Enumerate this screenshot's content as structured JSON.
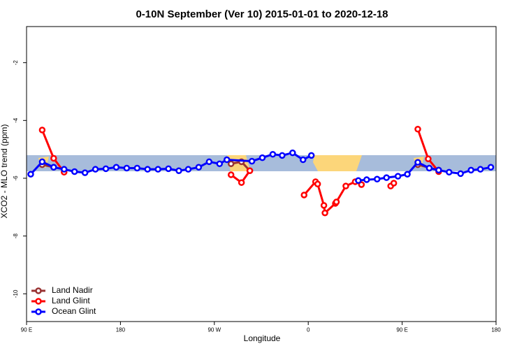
{
  "chart_data": {
    "type": "line",
    "title": "0-10N September (Ver 10)   2015-01-01 to 2020-12-18",
    "x_label": "Longitude",
    "y_label": "XCO2 - MLO trend (ppm)",
    "xlim": [
      90,
      540
    ],
    "xticks": [
      {
        "value": 90,
        "label": "90 E"
      },
      180,
      {
        "value": 270,
        "label": "90 W"
      },
      {
        "value": 360,
        "label": "0"
      },
      {
        "value": 450,
        "label": "90 E"
      },
      {
        "value": 540,
        "label": "180"
      }
    ],
    "ylim": [
      -10.96,
      -0.75
    ],
    "yticks": [
      -10,
      -8,
      -6,
      -4,
      -2
    ],
    "legend": "bottom-left",
    "series": [
      {
        "name": "Land Nadir",
        "color": "#993333",
        "x": [
          105,
          116,
          null,
          286,
          296,
          304,
          null,
          465,
          485
        ],
        "values": [
          -5.53,
          -5.62,
          null,
          -5.5,
          -5.43,
          -5.74,
          null,
          -5.53,
          -5.72
        ]
      },
      {
        "name": "Land Glint",
        "color": "#ff0000",
        "x": [
          105,
          116,
          126,
          null,
          286,
          296,
          304,
          null,
          356,
          367,
          369,
          375,
          376,
          386,
          387,
          396,
          405,
          411,
          null,
          439,
          442,
          null,
          465,
          475,
          485
        ],
        "values": [
          -4.33,
          -5.31,
          -5.79,
          null,
          -5.88,
          -6.15,
          -5.74,
          null,
          -6.58,
          -6.12,
          -6.2,
          -6.94,
          -7.2,
          -6.87,
          -6.82,
          -6.27,
          -6.12,
          -6.22,
          null,
          -6.27,
          -6.17,
          null,
          -4.3,
          -5.33,
          -5.77
        ]
      },
      {
        "name": "Ocean Glint",
        "color": "#0000ff",
        "x": [
          94,
          105,
          116,
          126,
          136,
          146,
          156,
          166,
          176,
          186,
          196,
          206,
          216,
          226,
          236,
          245,
          255,
          265,
          275,
          282,
          306,
          316,
          326,
          335,
          345,
          355,
          363,
          null,
          408,
          416,
          426,
          435,
          446,
          455,
          465,
          476,
          485,
          495,
          506,
          516,
          525,
          535
        ],
        "values": [
          -5.86,
          -5.43,
          -5.62,
          -5.69,
          -5.77,
          -5.81,
          -5.69,
          -5.67,
          -5.62,
          -5.65,
          -5.65,
          -5.69,
          -5.69,
          -5.67,
          -5.74,
          -5.69,
          -5.62,
          -5.43,
          -5.5,
          -5.36,
          -5.41,
          -5.29,
          -5.17,
          -5.21,
          -5.12,
          -5.36,
          -5.21,
          null,
          -6.08,
          -6.05,
          -6.03,
          -5.98,
          -5.93,
          -5.86,
          -5.45,
          -5.65,
          -5.72,
          -5.79,
          -5.84,
          -5.72,
          -5.69,
          -5.62
        ]
      }
    ]
  }
}
